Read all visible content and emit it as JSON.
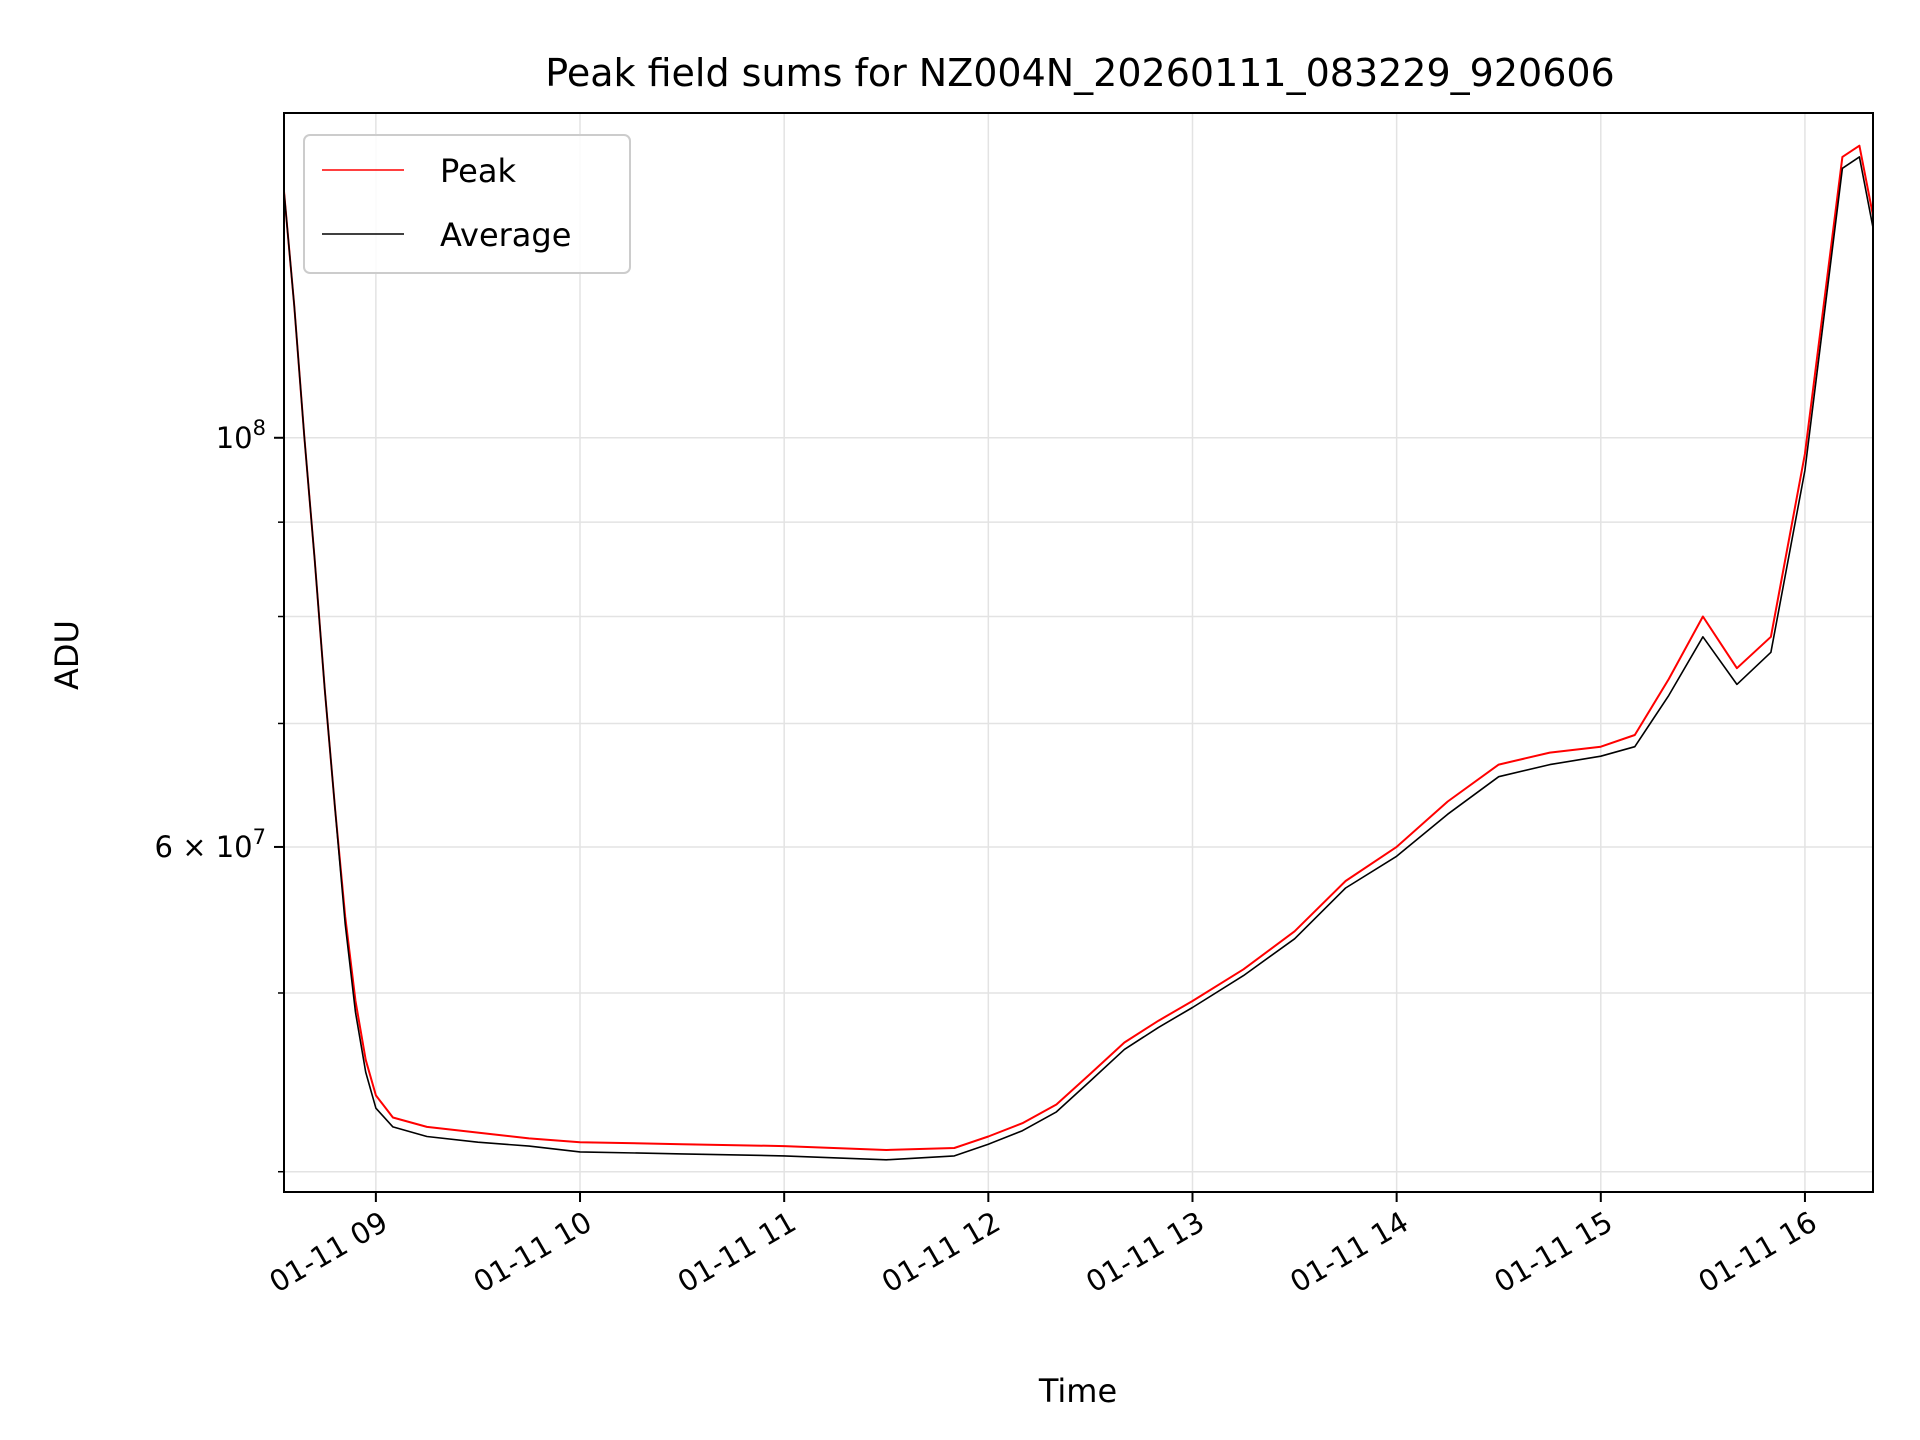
{
  "chart_data": {
    "type": "line",
    "title": "Peak field sums for NZ004N_20260111_083229_920606",
    "xlabel": "Time",
    "ylabel": "ADU",
    "y_scale": "log",
    "ylim": [
      39000000,
      150000000
    ],
    "xlim": [
      "2026-01-11 08:33",
      "2026-01-11 16:20"
    ],
    "x_ticks": [
      "2026-01-11 09:00",
      "2026-01-11 10:00",
      "2026-01-11 11:00",
      "2026-01-11 12:00",
      "2026-01-11 13:00",
      "2026-01-11 14:00",
      "2026-01-11 15:00",
      "2026-01-11 16:00"
    ],
    "x_tick_labels": [
      "01-11 09",
      "01-11 10",
      "01-11 11",
      "01-11 12",
      "01-11 13",
      "01-11 14",
      "01-11 15",
      "01-11 16"
    ],
    "y_major_ticks": [
      60000000,
      100000000
    ],
    "y_tick_labels": [
      {
        "mantissa": "6",
        "times": "×",
        "base": "10",
        "exp": "7"
      },
      {
        "mantissa": "",
        "times": "",
        "base": "10",
        "exp": "8"
      }
    ],
    "y_minor_ticks": [
      40000000,
      50000000,
      70000000,
      80000000,
      90000000
    ],
    "grid": true,
    "legend_position": "top-left",
    "series": [
      {
        "name": "Peak",
        "color": "#ff0000",
        "points": [
          [
            "2026-01-11 08:33",
            136000000
          ],
          [
            "2026-01-11 08:36",
            118000000
          ],
          [
            "2026-01-11 08:39",
            100000000
          ],
          [
            "2026-01-11 08:42",
            86000000
          ],
          [
            "2026-01-11 08:45",
            73000000
          ],
          [
            "2026-01-11 08:48",
            63000000
          ],
          [
            "2026-01-11 08:51",
            55000000
          ],
          [
            "2026-01-11 08:54",
            49500000
          ],
          [
            "2026-01-11 08:57",
            46000000
          ],
          [
            "2026-01-11 09:00",
            44000000
          ],
          [
            "2026-01-11 09:05",
            42800000
          ],
          [
            "2026-01-11 09:15",
            42300000
          ],
          [
            "2026-01-11 09:30",
            42000000
          ],
          [
            "2026-01-11 09:45",
            41700000
          ],
          [
            "2026-01-11 10:00",
            41500000
          ],
          [
            "2026-01-11 10:30",
            41400000
          ],
          [
            "2026-01-11 11:00",
            41300000
          ],
          [
            "2026-01-11 11:30",
            41100000
          ],
          [
            "2026-01-11 11:50",
            41200000
          ],
          [
            "2026-01-11 12:00",
            41800000
          ],
          [
            "2026-01-11 12:10",
            42500000
          ],
          [
            "2026-01-11 12:20",
            43500000
          ],
          [
            "2026-01-11 12:30",
            45200000
          ],
          [
            "2026-01-11 12:40",
            47000000
          ],
          [
            "2026-01-11 12:50",
            48300000
          ],
          [
            "2026-01-11 13:00",
            49500000
          ],
          [
            "2026-01-11 13:15",
            51500000
          ],
          [
            "2026-01-11 13:30",
            54000000
          ],
          [
            "2026-01-11 13:45",
            57500000
          ],
          [
            "2026-01-11 14:00",
            60000000
          ],
          [
            "2026-01-11 14:15",
            63500000
          ],
          [
            "2026-01-11 14:30",
            66500000
          ],
          [
            "2026-01-11 14:45",
            67500000
          ],
          [
            "2026-01-11 15:00",
            68000000
          ],
          [
            "2026-01-11 15:10",
            69000000
          ],
          [
            "2026-01-11 15:20",
            74000000
          ],
          [
            "2026-01-11 15:30",
            80000000
          ],
          [
            "2026-01-11 15:40",
            75000000
          ],
          [
            "2026-01-11 15:50",
            78000000
          ],
          [
            "2026-01-11 16:00",
            98000000
          ],
          [
            "2026-01-11 16:06",
            120000000
          ],
          [
            "2026-01-11 16:11",
            142000000
          ],
          [
            "2026-01-11 16:16",
            144000000
          ],
          [
            "2026-01-11 16:20",
            132000000
          ]
        ]
      },
      {
        "name": "Average",
        "color": "#000000",
        "points": [
          [
            "2026-01-11 08:33",
            136000000
          ],
          [
            "2026-01-11 08:36",
            118000000
          ],
          [
            "2026-01-11 08:39",
            100000000
          ],
          [
            "2026-01-11 08:42",
            86000000
          ],
          [
            "2026-01-11 08:45",
            73000000
          ],
          [
            "2026-01-11 08:48",
            63000000
          ],
          [
            "2026-01-11 08:51",
            54500000
          ],
          [
            "2026-01-11 08:54",
            48800000
          ],
          [
            "2026-01-11 08:57",
            45300000
          ],
          [
            "2026-01-11 09:00",
            43300000
          ],
          [
            "2026-01-11 09:05",
            42300000
          ],
          [
            "2026-01-11 09:15",
            41800000
          ],
          [
            "2026-01-11 09:30",
            41500000
          ],
          [
            "2026-01-11 09:45",
            41300000
          ],
          [
            "2026-01-11 10:00",
            41000000
          ],
          [
            "2026-01-11 10:30",
            40900000
          ],
          [
            "2026-01-11 11:00",
            40800000
          ],
          [
            "2026-01-11 11:30",
            40600000
          ],
          [
            "2026-01-11 11:50",
            40800000
          ],
          [
            "2026-01-11 12:00",
            41400000
          ],
          [
            "2026-01-11 12:10",
            42100000
          ],
          [
            "2026-01-11 12:20",
            43100000
          ],
          [
            "2026-01-11 12:30",
            44800000
          ],
          [
            "2026-01-11 12:40",
            46600000
          ],
          [
            "2026-01-11 12:50",
            47900000
          ],
          [
            "2026-01-11 13:00",
            49100000
          ],
          [
            "2026-01-11 13:15",
            51100000
          ],
          [
            "2026-01-11 13:30",
            53500000
          ],
          [
            "2026-01-11 13:45",
            57000000
          ],
          [
            "2026-01-11 14:00",
            59300000
          ],
          [
            "2026-01-11 14:15",
            62500000
          ],
          [
            "2026-01-11 14:30",
            65500000
          ],
          [
            "2026-01-11 14:45",
            66500000
          ],
          [
            "2026-01-11 15:00",
            67200000
          ],
          [
            "2026-01-11 15:10",
            68000000
          ],
          [
            "2026-01-11 15:20",
            72500000
          ],
          [
            "2026-01-11 15:30",
            78000000
          ],
          [
            "2026-01-11 15:40",
            73500000
          ],
          [
            "2026-01-11 15:50",
            76500000
          ],
          [
            "2026-01-11 16:00",
            96000000
          ],
          [
            "2026-01-11 16:06",
            118000000
          ],
          [
            "2026-01-11 16:11",
            140000000
          ],
          [
            "2026-01-11 16:16",
            142000000
          ],
          [
            "2026-01-11 16:20",
            130000000
          ]
        ]
      }
    ]
  }
}
